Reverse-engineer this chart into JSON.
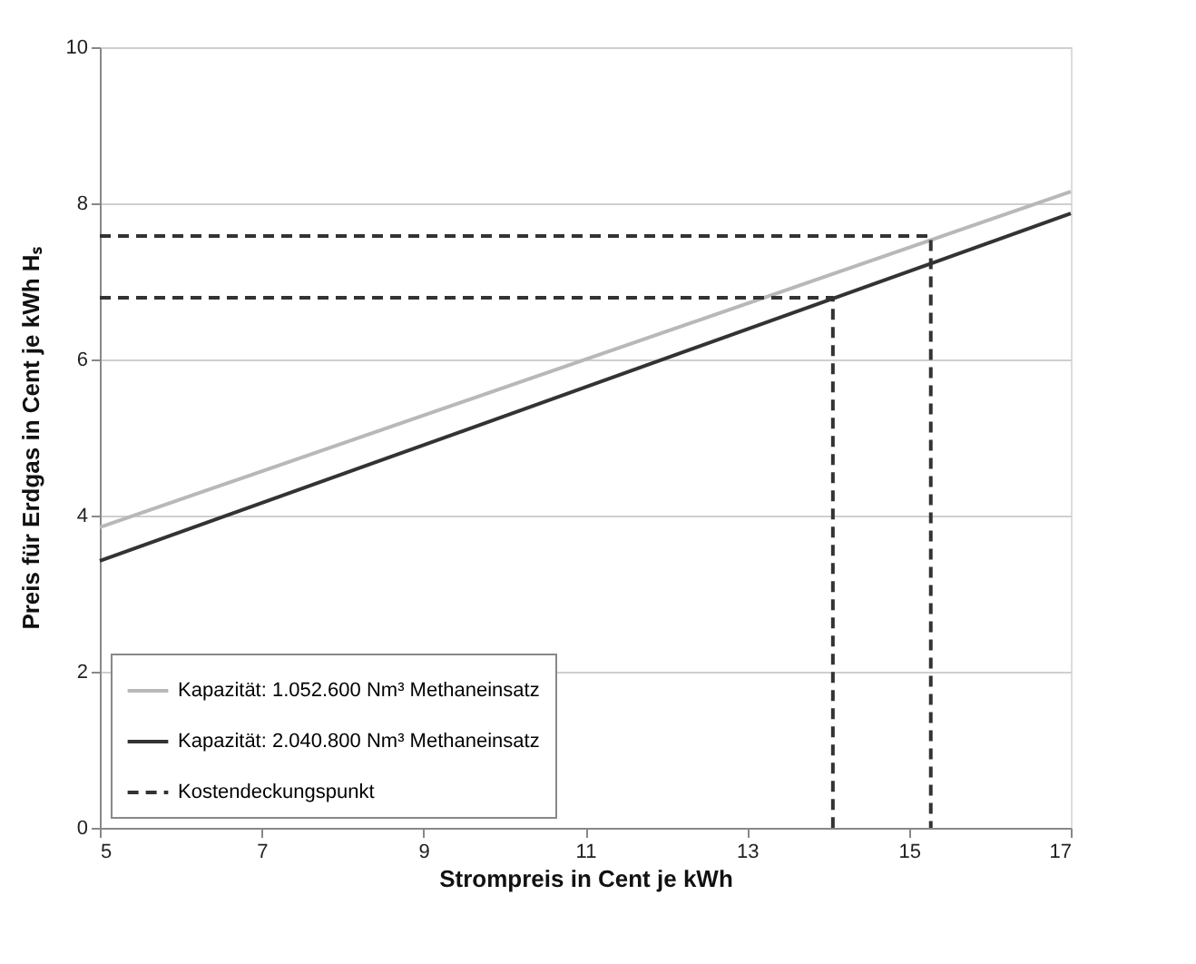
{
  "chart_data": {
    "type": "line",
    "xlabel": "Strompreis in Cent je kWh",
    "ylabel": "Preis für Erdgas in Cent je kWh Hₛ",
    "xlim": [
      5,
      17
    ],
    "xticks": [
      5,
      7,
      9,
      11,
      13,
      15,
      17
    ],
    "ylim": [
      0,
      10
    ],
    "yticks": [
      0,
      2,
      4,
      6,
      8,
      10
    ],
    "grid": "y",
    "legend": "bottom left",
    "line_style": "solid",
    "marker": "none",
    "series": [
      {
        "name": "Kapazität: 1.052.600 Nm³ Methaneinsatz",
        "color": "#b8b8b8",
        "x": [
          5,
          17
        ],
        "values": [
          3.85,
          8.15
        ]
      },
      {
        "name": "Kapazität: 2.040.800 Nm³ Methaneinsatz",
        "color": "#333333",
        "x": [
          5,
          17
        ],
        "values": [
          3.42,
          7.87
        ]
      },
      {
        "name": "Kostendeckungspunkt",
        "color": "#333333",
        "line_style": "dashed",
        "x": [
          5,
          15.27,
          15.27
        ],
        "values": [
          7.58,
          7.58,
          0
        ]
      },
      {
        "color": "#333333",
        "line_style": "dashed",
        "x": [
          5,
          14.06,
          14.06
        ],
        "values": [
          6.79,
          6.79,
          0
        ]
      }
    ]
  }
}
